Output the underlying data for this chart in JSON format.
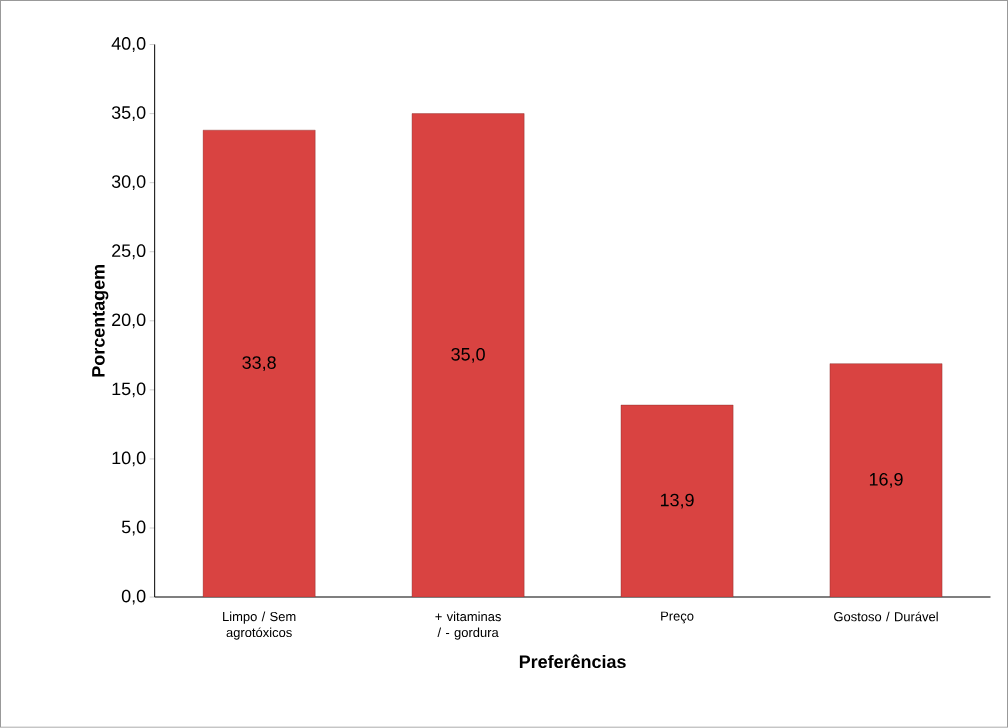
{
  "chart_data": {
    "type": "bar",
    "xlabel": "Preferências",
    "ylabel": "Porcentagem",
    "categories": [
      "Limpo / Sem agrotóxicos",
      "+ vitaminas / - gordura",
      "Preço",
      "Gostoso / Durável"
    ],
    "values": [
      33.8,
      35.0,
      13.9,
      16.9
    ],
    "value_labels": [
      "33,8",
      "35,0",
      "13,9",
      "16,9"
    ],
    "color": "#d94341",
    "ylim": [
      0,
      40
    ],
    "yticks": [
      {
        "value": 0,
        "label": "0,0"
      },
      {
        "value": 5,
        "label": "5,0"
      },
      {
        "value": 10,
        "label": "10,0"
      },
      {
        "value": 15,
        "label": "15,0"
      },
      {
        "value": 20,
        "label": "20,0"
      },
      {
        "value": 25,
        "label": "25,0"
      },
      {
        "value": 30,
        "label": "30,0"
      },
      {
        "value": 35,
        "label": "35,0"
      },
      {
        "value": 40,
        "label": "40,0"
      }
    ],
    "grid": false
  }
}
